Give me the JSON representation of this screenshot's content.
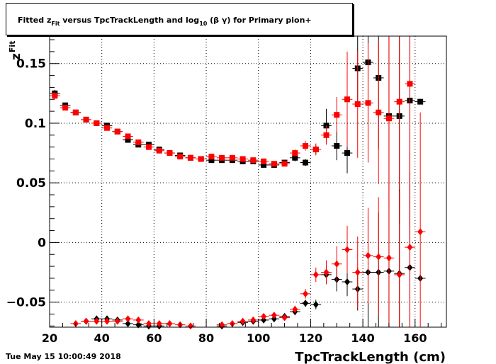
{
  "timestamp": "Tue May 15 10:00:49 2018",
  "chart_data": {
    "type": "scatter",
    "title": {
      "prefix": "Fitted  z",
      "prefix_sub": "Fit",
      "middle": "  versus TpcTrackLength and log",
      "middle_sub": "10",
      "suffix": " (β γ) for Primary pion+"
    },
    "xlabel": "TpcTrackLength (cm)",
    "ylabel": "z",
    "ylabel_sub": "Fit",
    "xlim": [
      20,
      172
    ],
    "ylim": [
      -0.071,
      0.173
    ],
    "xticks": [
      20,
      40,
      60,
      80,
      100,
      120,
      140,
      160
    ],
    "yticks": [
      -0.05,
      0,
      0.05,
      0.1,
      0.15
    ],
    "ytick_labels": [
      "−0.05",
      "0",
      "0.05",
      "0.1",
      "0.15"
    ],
    "grid": true,
    "series": [
      {
        "marker": "square",
        "color": "#000000",
        "points": [
          {
            "x": 22,
            "y": 0.125,
            "e": 0.003
          },
          {
            "x": 26,
            "y": 0.115,
            "e": 0.002
          },
          {
            "x": 30,
            "y": 0.109,
            "e": 0.002
          },
          {
            "x": 34,
            "y": 0.103,
            "e": 0.002
          },
          {
            "x": 38,
            "y": 0.1,
            "e": 0.002
          },
          {
            "x": 42,
            "y": 0.098,
            "e": 0.002
          },
          {
            "x": 46,
            "y": 0.093,
            "e": 0.002
          },
          {
            "x": 50,
            "y": 0.086,
            "e": 0.002
          },
          {
            "x": 54,
            "y": 0.082,
            "e": 0.002
          },
          {
            "x": 58,
            "y": 0.082,
            "e": 0.002
          },
          {
            "x": 62,
            "y": 0.078,
            "e": 0.002
          },
          {
            "x": 66,
            "y": 0.075,
            "e": 0.002
          },
          {
            "x": 70,
            "y": 0.073,
            "e": 0.002
          },
          {
            "x": 74,
            "y": 0.071,
            "e": 0.002
          },
          {
            "x": 78,
            "y": 0.07,
            "e": 0.002
          },
          {
            "x": 82,
            "y": 0.069,
            "e": 0.002
          },
          {
            "x": 86,
            "y": 0.069,
            "e": 0.002
          },
          {
            "x": 90,
            "y": 0.069,
            "e": 0.002
          },
          {
            "x": 94,
            "y": 0.068,
            "e": 0.002
          },
          {
            "x": 98,
            "y": 0.068,
            "e": 0.002
          },
          {
            "x": 102,
            "y": 0.065,
            "e": 0.002
          },
          {
            "x": 106,
            "y": 0.065,
            "e": 0.002
          },
          {
            "x": 110,
            "y": 0.067,
            "e": 0.002
          },
          {
            "x": 114,
            "y": 0.071,
            "e": 0.003
          },
          {
            "x": 118,
            "y": 0.067,
            "e": 0.003
          },
          {
            "x": 122,
            "y": 0.078,
            "e": 0.004
          },
          {
            "x": 126,
            "y": 0.098,
            "e": 0.014
          },
          {
            "x": 130,
            "y": 0.081,
            "e": 0.012
          },
          {
            "x": 134,
            "y": 0.075,
            "e": 0.017
          },
          {
            "x": 138,
            "y": 0.146,
            "e": 0.03
          },
          {
            "x": 142,
            "y": 0.151,
            "e": 0.05
          },
          {
            "x": 146,
            "y": 0.138,
            "e": 0.06
          },
          {
            "x": 150,
            "y": 0.106,
            "e": 0.07
          },
          {
            "x": 154,
            "y": 0.106,
            "e": 0.09
          },
          {
            "x": 158,
            "y": 0.119,
            "e": 0.12
          },
          {
            "x": 162,
            "y": 0.118,
            "e": 0.0
          }
        ]
      },
      {
        "marker": "square",
        "color": "#ff0000",
        "points": [
          {
            "x": 22,
            "y": 0.123,
            "e": 0.003
          },
          {
            "x": 26,
            "y": 0.113,
            "e": 0.002
          },
          {
            "x": 30,
            "y": 0.109,
            "e": 0.002
          },
          {
            "x": 34,
            "y": 0.103,
            "e": 0.002
          },
          {
            "x": 38,
            "y": 0.1,
            "e": 0.002
          },
          {
            "x": 42,
            "y": 0.096,
            "e": 0.002
          },
          {
            "x": 46,
            "y": 0.093,
            "e": 0.002
          },
          {
            "x": 50,
            "y": 0.089,
            "e": 0.002
          },
          {
            "x": 54,
            "y": 0.084,
            "e": 0.002
          },
          {
            "x": 58,
            "y": 0.08,
            "e": 0.002
          },
          {
            "x": 62,
            "y": 0.077,
            "e": 0.002
          },
          {
            "x": 66,
            "y": 0.075,
            "e": 0.002
          },
          {
            "x": 70,
            "y": 0.072,
            "e": 0.002
          },
          {
            "x": 74,
            "y": 0.071,
            "e": 0.002
          },
          {
            "x": 78,
            "y": 0.07,
            "e": 0.002
          },
          {
            "x": 82,
            "y": 0.072,
            "e": 0.002
          },
          {
            "x": 86,
            "y": 0.071,
            "e": 0.002
          },
          {
            "x": 90,
            "y": 0.071,
            "e": 0.002
          },
          {
            "x": 94,
            "y": 0.07,
            "e": 0.002
          },
          {
            "x": 98,
            "y": 0.069,
            "e": 0.002
          },
          {
            "x": 102,
            "y": 0.068,
            "e": 0.002
          },
          {
            "x": 106,
            "y": 0.066,
            "e": 0.002
          },
          {
            "x": 110,
            "y": 0.066,
            "e": 0.002
          },
          {
            "x": 114,
            "y": 0.075,
            "e": 0.003
          },
          {
            "x": 118,
            "y": 0.081,
            "e": 0.004
          },
          {
            "x": 122,
            "y": 0.078,
            "e": 0.005
          },
          {
            "x": 126,
            "y": 0.09,
            "e": 0.008
          },
          {
            "x": 130,
            "y": 0.107,
            "e": 0.015
          },
          {
            "x": 134,
            "y": 0.12,
            "e": 0.04
          },
          {
            "x": 138,
            "y": 0.116,
            "e": 0.045
          },
          {
            "x": 142,
            "y": 0.117,
            "e": 0.05
          },
          {
            "x": 146,
            "y": 0.109,
            "e": 0.06
          },
          {
            "x": 150,
            "y": 0.104,
            "e": 0.07
          },
          {
            "x": 154,
            "y": 0.118,
            "e": 0.09
          },
          {
            "x": 158,
            "y": 0.133,
            "e": 0.12
          }
        ]
      },
      {
        "marker": "diamond",
        "color": "#000000",
        "points": [
          {
            "x": 34,
            "y": -0.066,
            "e": 0.002
          },
          {
            "x": 38,
            "y": -0.064,
            "e": 0.002
          },
          {
            "x": 42,
            "y": -0.064,
            "e": 0.002
          },
          {
            "x": 46,
            "y": -0.065,
            "e": 0.002
          },
          {
            "x": 50,
            "y": -0.068,
            "e": 0.002
          },
          {
            "x": 54,
            "y": -0.069,
            "e": 0.002
          },
          {
            "x": 58,
            "y": -0.07,
            "e": 0.002
          },
          {
            "x": 62,
            "y": -0.07,
            "e": 0.002
          },
          {
            "x": 86,
            "y": -0.07,
            "e": 0.002
          },
          {
            "x": 94,
            "y": -0.067,
            "e": 0.002
          },
          {
            "x": 98,
            "y": -0.066,
            "e": 0.002
          },
          {
            "x": 102,
            "y": -0.065,
            "e": 0.002
          },
          {
            "x": 106,
            "y": -0.064,
            "e": 0.002
          },
          {
            "x": 110,
            "y": -0.062,
            "e": 0.002
          },
          {
            "x": 114,
            "y": -0.058,
            "e": 0.003
          },
          {
            "x": 118,
            "y": -0.051,
            "e": 0.003
          },
          {
            "x": 122,
            "y": -0.052,
            "e": 0.004
          },
          {
            "x": 126,
            "y": -0.027,
            "e": 0.008
          },
          {
            "x": 130,
            "y": -0.031,
            "e": 0.01
          },
          {
            "x": 134,
            "y": -0.033,
            "e": 0.012
          },
          {
            "x": 138,
            "y": -0.039,
            "e": 0.018
          },
          {
            "x": 142,
            "y": -0.025,
            "e": 0.05
          },
          {
            "x": 146,
            "y": -0.025,
            "e": 0.05
          },
          {
            "x": 150,
            "y": -0.024,
            "e": 0.06
          },
          {
            "x": 154,
            "y": -0.026,
            "e": 0.07
          },
          {
            "x": 158,
            "y": -0.021,
            "e": 0.08
          },
          {
            "x": 162,
            "y": -0.03,
            "e": 0.0
          }
        ]
      },
      {
        "marker": "diamond",
        "color": "#ff0000",
        "points": [
          {
            "x": 30,
            "y": -0.068,
            "e": 0.002
          },
          {
            "x": 34,
            "y": -0.066,
            "e": 0.002
          },
          {
            "x": 38,
            "y": -0.066,
            "e": 0.002
          },
          {
            "x": 42,
            "y": -0.066,
            "e": 0.002
          },
          {
            "x": 46,
            "y": -0.066,
            "e": 0.002
          },
          {
            "x": 50,
            "y": -0.064,
            "e": 0.002
          },
          {
            "x": 54,
            "y": -0.065,
            "e": 0.002
          },
          {
            "x": 58,
            "y": -0.068,
            "e": 0.002
          },
          {
            "x": 62,
            "y": -0.068,
            "e": 0.002
          },
          {
            "x": 66,
            "y": -0.068,
            "e": 0.002
          },
          {
            "x": 70,
            "y": -0.069,
            "e": 0.002
          },
          {
            "x": 74,
            "y": -0.07,
            "e": 0.002
          },
          {
            "x": 86,
            "y": -0.069,
            "e": 0.002
          },
          {
            "x": 90,
            "y": -0.068,
            "e": 0.002
          },
          {
            "x": 94,
            "y": -0.066,
            "e": 0.002
          },
          {
            "x": 98,
            "y": -0.065,
            "e": 0.002
          },
          {
            "x": 102,
            "y": -0.062,
            "e": 0.002
          },
          {
            "x": 106,
            "y": -0.061,
            "e": 0.002
          },
          {
            "x": 110,
            "y": -0.063,
            "e": 0.002
          },
          {
            "x": 114,
            "y": -0.056,
            "e": 0.003
          },
          {
            "x": 118,
            "y": -0.043,
            "e": 0.004
          },
          {
            "x": 122,
            "y": -0.027,
            "e": 0.006
          },
          {
            "x": 126,
            "y": -0.025,
            "e": 0.01
          },
          {
            "x": 130,
            "y": -0.018,
            "e": 0.015
          },
          {
            "x": 134,
            "y": -0.006,
            "e": 0.02
          },
          {
            "x": 138,
            "y": -0.025,
            "e": 0.03
          },
          {
            "x": 142,
            "y": -0.011,
            "e": 0.04
          },
          {
            "x": 146,
            "y": -0.012,
            "e": 0.05
          },
          {
            "x": 150,
            "y": -0.013,
            "e": 0.06
          },
          {
            "x": 154,
            "y": -0.027,
            "e": 0.07
          },
          {
            "x": 158,
            "y": -0.004,
            "e": 0.08
          },
          {
            "x": 162,
            "y": 0.009,
            "e": 0.1
          }
        ]
      }
    ]
  }
}
